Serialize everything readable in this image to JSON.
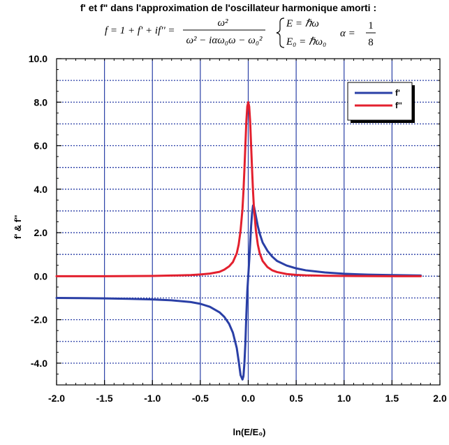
{
  "chart_data": {
    "type": "line",
    "title": "f' et f\" dans l'approximation de l'oscillateur harmonique amorti :",
    "equation": {
      "lhs": "f = 1 + f' + if'' =",
      "numerator": "ω²",
      "denominator": "ω² − iαω₀ω − ω₀²",
      "cond1": "E = ℏω",
      "cond2": "E₀ = ℏω₀",
      "alpha_lhs": "α =",
      "alpha_num": "1",
      "alpha_den": "8"
    },
    "xlabel": "ln(E/E₀)",
    "ylabel": "f' & f''",
    "xlim": [
      -2.0,
      2.0
    ],
    "ylim": [
      -5.0,
      10.0
    ],
    "xticks": [
      "-2.0",
      "-1.5",
      "-1.0",
      "-0.5",
      "0.0",
      "0.5",
      "1.0",
      "1.5",
      "2.0"
    ],
    "yticks": [
      "10.0",
      "8.0",
      "6.0",
      "4.0",
      "2.0",
      "0.0",
      "-2.0",
      "-4.0"
    ],
    "grid": true,
    "legend_position": "top-right",
    "series": [
      {
        "name": "f'",
        "color": "#2a3fa6",
        "x": [
          -2.0,
          -1.75,
          -1.5,
          -1.25,
          -1.0,
          -0.8,
          -0.6,
          -0.5,
          -0.4,
          -0.3,
          -0.25,
          -0.2,
          -0.16,
          -0.12,
          -0.1,
          -0.08,
          -0.06,
          -0.05,
          -0.04,
          -0.03,
          -0.02,
          -0.01,
          0.0,
          0.01,
          0.02,
          0.03,
          0.04,
          0.05,
          0.06,
          0.08,
          0.1,
          0.12,
          0.15,
          0.2,
          0.25,
          0.3,
          0.4,
          0.5,
          0.6,
          0.8,
          1.0,
          1.25,
          1.5,
          1.8
        ],
        "y": [
          -1.0,
          -1.01,
          -1.02,
          -1.04,
          -1.07,
          -1.11,
          -1.19,
          -1.27,
          -1.41,
          -1.66,
          -1.87,
          -2.19,
          -2.6,
          -3.3,
          -3.9,
          -4.55,
          -4.75,
          -4.6,
          -4.0,
          -3.1,
          -1.8,
          -0.7,
          0.0,
          0.7,
          1.5,
          2.3,
          2.9,
          3.25,
          3.2,
          2.75,
          2.3,
          1.95,
          1.55,
          1.17,
          0.9,
          0.7,
          0.49,
          0.36,
          0.27,
          0.17,
          0.11,
          0.07,
          0.05,
          0.03
        ]
      },
      {
        "name": "f''",
        "color": "#e3202e",
        "x": [
          -2.0,
          -1.5,
          -1.0,
          -0.8,
          -0.6,
          -0.5,
          -0.4,
          -0.3,
          -0.25,
          -0.2,
          -0.16,
          -0.12,
          -0.1,
          -0.08,
          -0.06,
          -0.05,
          -0.04,
          -0.03,
          -0.02,
          -0.01,
          0.0,
          0.01,
          0.02,
          0.03,
          0.04,
          0.05,
          0.06,
          0.08,
          0.1,
          0.12,
          0.15,
          0.2,
          0.25,
          0.3,
          0.4,
          0.5,
          0.6,
          0.8,
          1.0,
          1.5,
          1.8
        ],
        "y": [
          0.0,
          0.0,
          0.01,
          0.03,
          0.05,
          0.08,
          0.12,
          0.2,
          0.3,
          0.45,
          0.65,
          1.05,
          1.45,
          2.1,
          3.1,
          3.9,
          4.9,
          6.0,
          7.1,
          7.8,
          8.0,
          7.8,
          7.1,
          6.0,
          4.9,
          3.9,
          3.1,
          2.1,
          1.45,
          1.05,
          0.7,
          0.42,
          0.27,
          0.19,
          0.1,
          0.06,
          0.04,
          0.02,
          0.01,
          0.0,
          0.0
        ]
      }
    ]
  }
}
